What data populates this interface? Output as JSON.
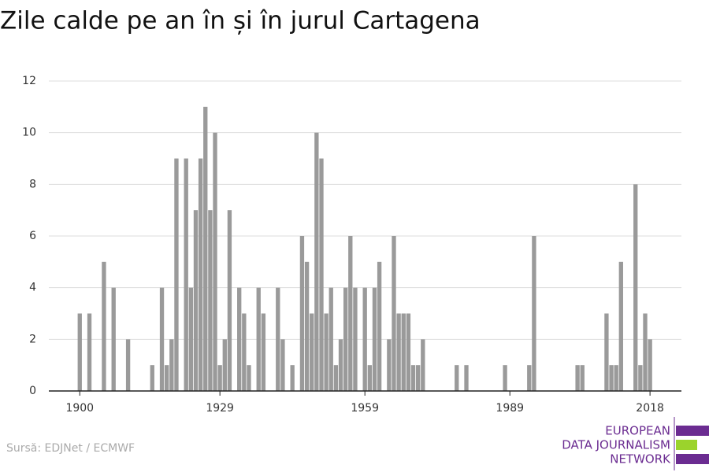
{
  "chart_data": {
    "type": "bar",
    "title": "Zile calde pe an în și în jurul Cartagena",
    "x": [
      1900,
      1902,
      1905,
      1907,
      1910,
      1915,
      1917,
      1918,
      1919,
      1920,
      1922,
      1923,
      1924,
      1925,
      1926,
      1927,
      1928,
      1929,
      1930,
      1931,
      1933,
      1934,
      1935,
      1937,
      1938,
      1941,
      1942,
      1944,
      1946,
      1947,
      1948,
      1949,
      1950,
      1951,
      1952,
      1953,
      1954,
      1955,
      1956,
      1957,
      1959,
      1960,
      1961,
      1962,
      1964,
      1965,
      1966,
      1967,
      1968,
      1969,
      1970,
      1971,
      1978,
      1980,
      1988,
      1993,
      1994,
      2003,
      2004,
      2009,
      2010,
      2011,
      2012,
      2015,
      2016,
      2017,
      2018
    ],
    "values": [
      3,
      3,
      5,
      4,
      2,
      1,
      4,
      1,
      2,
      9,
      9,
      4,
      7,
      9,
      11,
      7,
      10,
      1,
      2,
      7,
      4,
      3,
      1,
      4,
      3,
      4,
      2,
      1,
      6,
      5,
      3,
      10,
      9,
      3,
      4,
      1,
      2,
      4,
      6,
      4,
      4,
      1,
      4,
      5,
      2,
      6,
      3,
      3,
      3,
      1,
      1,
      2,
      1,
      1,
      1,
      1,
      6,
      1,
      1,
      3,
      1,
      1,
      5,
      8,
      1,
      3,
      2
    ],
    "color": "#9a9a9a",
    "xlim": [
      1893.6,
      2024.5
    ],
    "xticks": [
      1900,
      1929,
      1959,
      1989,
      2018
    ],
    "ylim": [
      0,
      12
    ],
    "yticks": [
      0,
      2,
      4,
      6,
      8,
      10,
      12
    ],
    "grid": true,
    "source": "Sursă: EDJNet / ECMWF",
    "logo": [
      "EUROPEAN",
      "DATA JOURNALISM",
      "NETWORK"
    ]
  }
}
